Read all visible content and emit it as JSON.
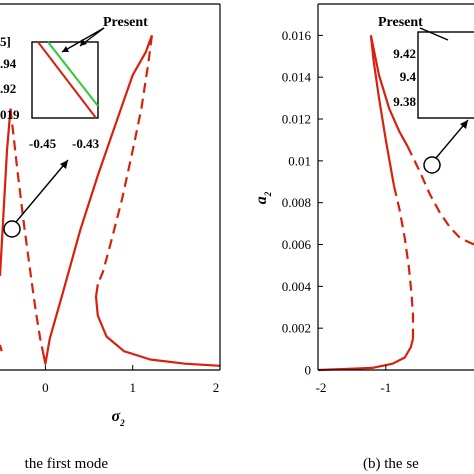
{
  "colors": {
    "red": "#d9200e",
    "green": "#2ecc30",
    "axis": "#000000"
  },
  "chart_data": [
    {
      "type": "line",
      "caption": "the first mode",
      "xlabel": "σ2",
      "xlim": [
        -0.52,
        2
      ],
      "x_ticks": [
        "0",
        "1",
        "2"
      ],
      "x_tick_values": [
        0,
        1,
        2
      ],
      "grid": false,
      "series": [
        {
          "style": "solid",
          "x": [
            -0.52,
            -0.48,
            -0.44,
            -0.4
          ],
          "y": [
            0.0045,
            0.0075,
            0.0105,
            0.0125
          ]
        },
        {
          "style": "dashed",
          "x": [
            -0.4,
            -0.32,
            -0.24,
            -0.17,
            -0.11,
            -0.06,
            -0.03
          ],
          "y": [
            0.0125,
            0.0095,
            0.0068,
            0.0046,
            0.0028,
            0.0015,
            0.0009
          ]
        },
        {
          "style": "solid",
          "x": [
            -0.03,
            0.0,
            0.05,
            0.2,
            0.4,
            0.6,
            0.8,
            1.0,
            1.15,
            1.22
          ],
          "y": [
            0.0009,
            0.0003,
            0.0015,
            0.0037,
            0.0067,
            0.0093,
            0.0117,
            0.0141,
            0.0152,
            0.016
          ]
        },
        {
          "style": "dashed",
          "x": [
            1.22,
            1.18,
            1.1,
            1.0,
            0.88,
            0.75,
            0.66,
            0.6
          ],
          "y": [
            0.016,
            0.0147,
            0.0125,
            0.0105,
            0.0082,
            0.0061,
            0.0047,
            0.0041
          ]
        },
        {
          "style": "solid",
          "x": [
            0.6,
            0.58,
            0.6,
            0.7,
            0.9,
            1.2,
            1.6,
            2.0
          ],
          "y": [
            0.0041,
            0.0035,
            0.0026,
            0.0016,
            0.0009,
            0.0005,
            0.0003,
            0.0002
          ]
        },
        {
          "style": "solid",
          "x": [
            -0.52,
            -0.5
          ],
          "y": [
            0.0012,
            0.0009
          ]
        }
      ],
      "inset": {
        "labels": [
          "5]",
          ".94",
          ".92",
          "019"
        ],
        "x_ticks": [
          "-0.45",
          "-0.43"
        ],
        "present_label": "Present"
      }
    },
    {
      "type": "line",
      "caption": "(b) the se",
      "xlabel": "σ2",
      "ylabel": "a2",
      "xlim": [
        -2,
        0.3
      ],
      "ylim": [
        0,
        0.0175
      ],
      "x_ticks": [
        "-2",
        "-1"
      ],
      "x_tick_values": [
        -2,
        -1
      ],
      "y_ticks": [
        "0",
        "0.002",
        "0.004",
        "0.006",
        "0.008",
        "0.01",
        "0.012",
        "0.014",
        "0.016"
      ],
      "y_tick_values": [
        0,
        0.002,
        0.004,
        0.006,
        0.008,
        0.01,
        0.012,
        0.014,
        0.016
      ],
      "grid": false,
      "series": [
        {
          "style": "solid",
          "x": [
            -2.0,
            -1.6,
            -1.2,
            -0.9,
            -0.72,
            -0.63,
            -0.6
          ],
          "y": [
            0.0,
            5e-05,
            0.0001,
            0.0003,
            0.0006,
            0.0011,
            0.0015
          ]
        },
        {
          "style": "dashed",
          "x": [
            -0.6,
            -0.6,
            -0.62,
            -0.66,
            -0.72,
            -0.8,
            -0.88
          ],
          "y": [
            0.0015,
            0.0026,
            0.0036,
            0.0049,
            0.0063,
            0.0077,
            0.0088
          ]
        },
        {
          "style": "solid",
          "x": [
            -0.88,
            -1.0,
            -1.1,
            -1.18,
            -1.22
          ],
          "y": [
            0.0088,
            0.011,
            0.013,
            0.0148,
            0.016
          ]
        },
        {
          "style": "solid",
          "x": [
            -1.22,
            -1.1,
            -0.95,
            -0.8,
            -0.68
          ],
          "y": [
            0.016,
            0.0141,
            0.0125,
            0.0114,
            0.0107
          ]
        },
        {
          "style": "dashed",
          "x": [
            -0.68,
            -0.5,
            -0.35,
            -0.2,
            -0.05,
            0.1,
            0.3
          ],
          "y": [
            0.0107,
            0.0095,
            0.0084,
            0.0075,
            0.0068,
            0.0063,
            0.006
          ]
        }
      ],
      "inset": {
        "labels": [
          "9.42",
          "9.4",
          "9.38"
        ],
        "present_label": "Present"
      }
    }
  ]
}
